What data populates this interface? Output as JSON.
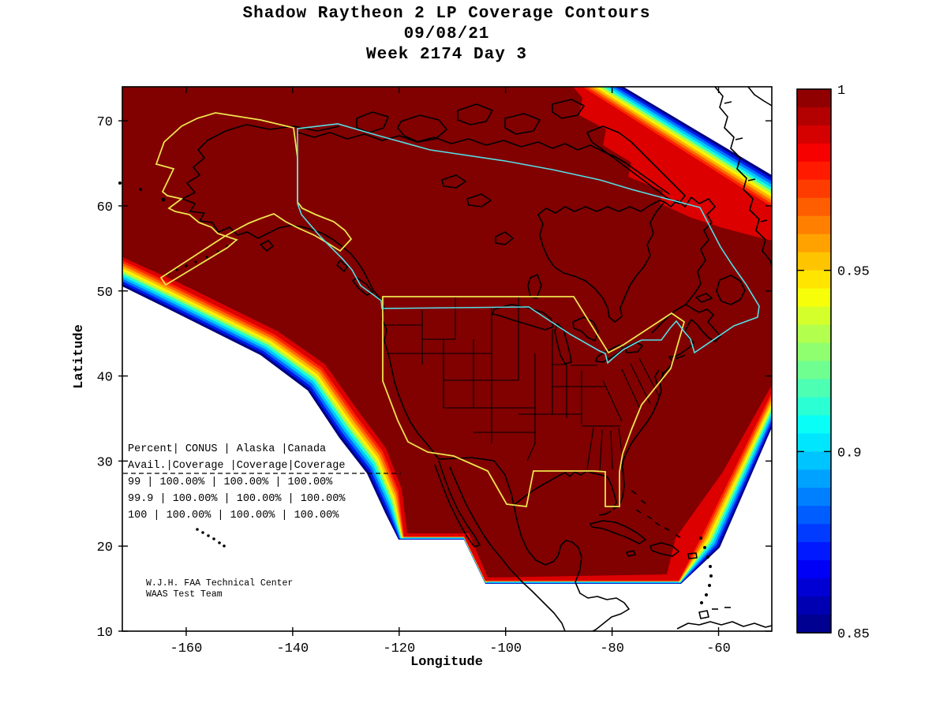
{
  "figure_title_lines": {
    "line1": "Shadow Raytheon 2 LP Coverage Contours",
    "line2": "09/08/21",
    "line3": "Week 2174 Day 3"
  },
  "chart_data": {
    "type": "heatmap",
    "subtype": "geographic-coverage-contour-map",
    "title": "Shadow Raytheon 2 LP Coverage Contours",
    "date": "09/08/21",
    "week_day": "Week 2174 Day 3",
    "xlabel": "Longitude",
    "ylabel": "Latitude",
    "xlim": [
      -172,
      -50
    ],
    "ylim": [
      10,
      74
    ],
    "xticks": [
      -160,
      -140,
      -120,
      -100,
      -80,
      -60
    ],
    "yticks": [
      10,
      20,
      30,
      40,
      50,
      60,
      70
    ],
    "grid": false,
    "colorbar": {
      "position": "right",
      "min": 0.85,
      "max": 1.0,
      "colormap": "jet",
      "tick_values": [
        1,
        0.95,
        0.9,
        0.85
      ],
      "tick_labels": [
        "1",
        "0.95",
        "0.9",
        "0.85"
      ]
    },
    "coverage": {
      "description": "LP coverage availability; dark red region = 1.0 (100%), rainbow fringe steps down to 0.85 at coverage edges over Pacific and North Atlantic",
      "max_value_region": "North America (CONUS, Alaska, Canada)"
    },
    "boundaries": [
      {
        "name": "Alaska region",
        "color": "#efe34f"
      },
      {
        "name": "CONUS region",
        "color": "#efe34f"
      },
      {
        "name": "Canada region",
        "color": "#55dfe6"
      }
    ],
    "availability_table": {
      "text_lines": [
        "Percent| CONUS    | Alaska |Canada",
        " Avail.|Coverage |Coverage|Coverage",
        "  99   | 100.00% | 100.00% | 100.00%",
        "  99.9 | 100.00% | 100.00% | 100.00%",
        "  100  | 100.00% | 100.00% | 100.00%"
      ],
      "columns": [
        "Percent Avail.",
        "CONUS Coverage",
        "Alaska Coverage",
        "Canada Coverage"
      ],
      "rows": [
        [
          "99",
          "100.00%",
          "100.00%",
          "100.00%"
        ],
        [
          "99.9",
          "100.00%",
          "100.00%",
          "100.00%"
        ],
        [
          "100",
          "100.00%",
          "100.00%",
          "100.00%"
        ]
      ]
    },
    "credit_lines": [
      "W.J.H. FAA Technical Center",
      "WAAS Test Team"
    ]
  },
  "colors": {
    "coverage_max": "#810000",
    "coverage_high_red": "#dc0000",
    "boundary_yellow": "#efe34f",
    "boundary_cyan": "#55dfe6",
    "coast_black": "#000000",
    "background": "#ffffff"
  }
}
